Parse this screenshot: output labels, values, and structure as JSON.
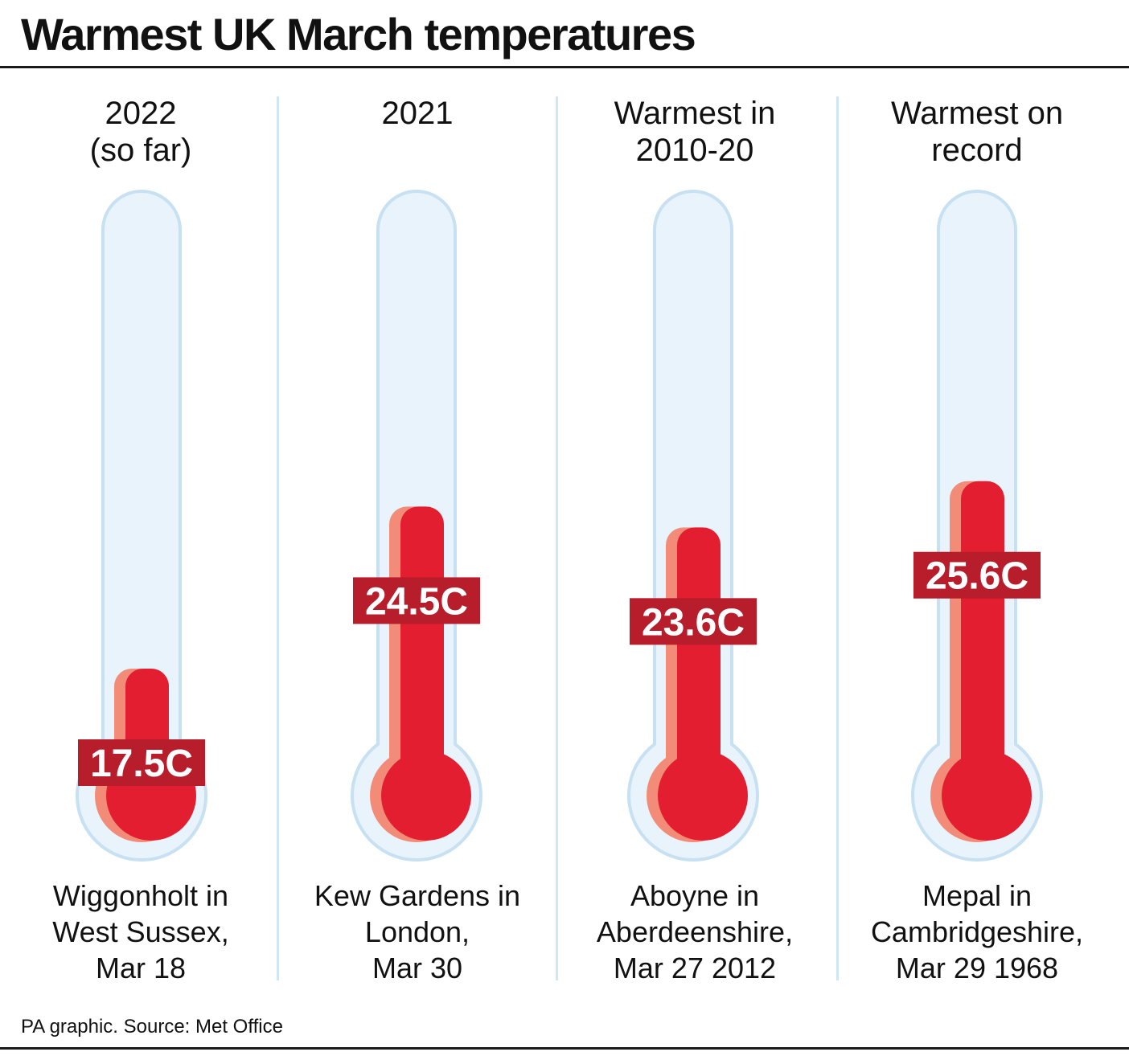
{
  "title": "Warmest UK March temperatures",
  "source": "PA graphic. Source: Met Office",
  "columns": [
    {
      "heading": "2022\n(so far)",
      "caption": "Wiggonholt in\nWest Sussex,\nMar 18"
    },
    {
      "heading": "2021",
      "caption": "Kew Gardens in\nLondon,\nMar 30"
    },
    {
      "heading": "Warmest in\n2010-20",
      "caption": "Aboyne in\nAberdeenshire,\nMar 27 2012"
    },
    {
      "heading": "Warmest on\nrecord",
      "caption": "Mepal in\nCambridgeshire,\nMar 29 1968"
    }
  ],
  "colors": {
    "mercury": "#e31e30",
    "mercury_highlight": "#f28c78",
    "label_box": "#b81d2b",
    "tube_fill": "#e9f3fb",
    "tube_stroke": "#c7e1f2",
    "divider": "#cfe6f4"
  },
  "chart_data": {
    "type": "bar",
    "title": "Warmest UK March temperatures",
    "categories": [
      "2022 (so far)",
      "2021",
      "Warmest in 2010-20",
      "Warmest on record"
    ],
    "values": [
      17.5,
      24.5,
      23.6,
      25.6
    ],
    "labels": [
      "17.5C",
      "24.5C",
      "23.6C",
      "25.6C"
    ],
    "unit": "C",
    "xlabel": "",
    "ylabel": "",
    "ylim": [
      0,
      30
    ],
    "grid": false,
    "legend": "none"
  }
}
